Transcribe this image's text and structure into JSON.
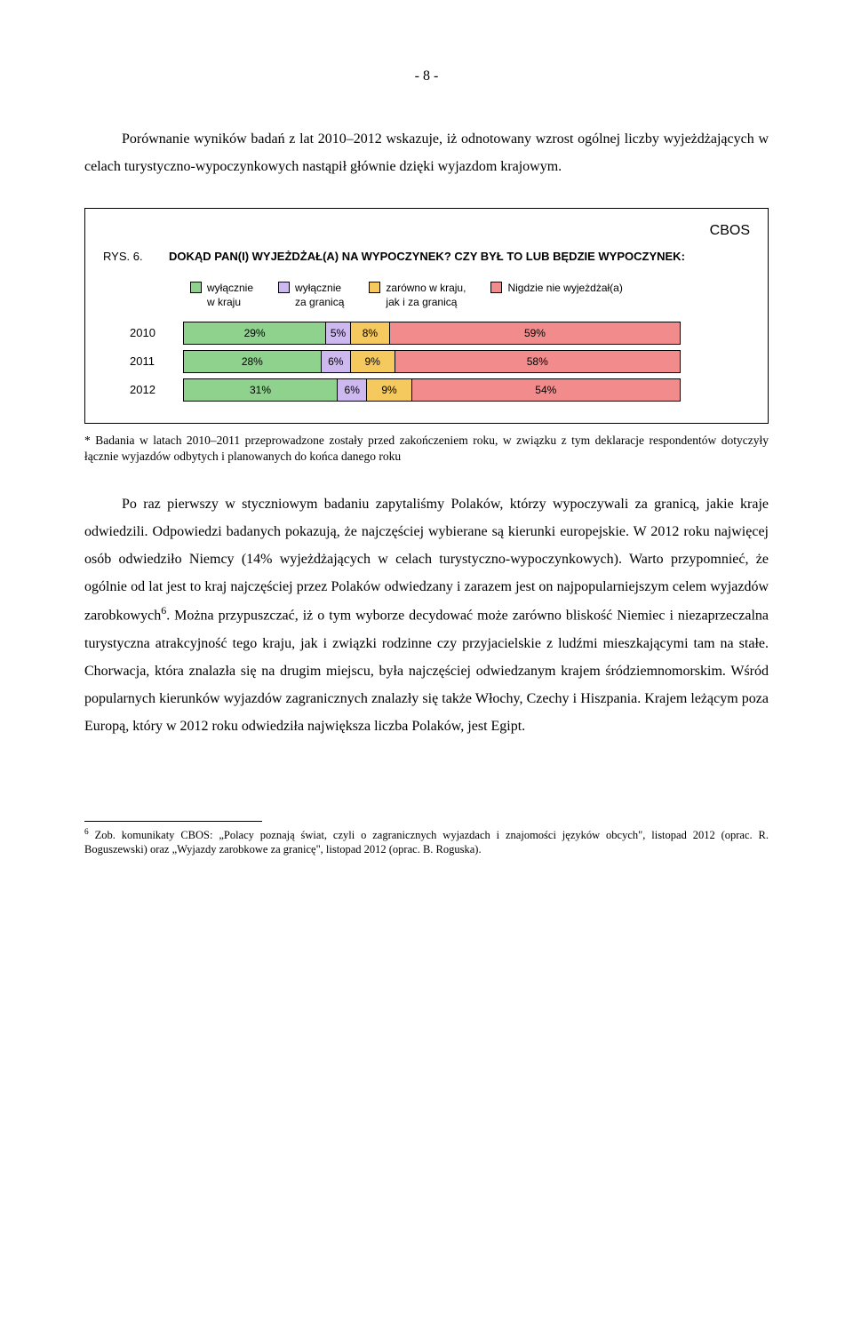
{
  "page_number": "- 8 -",
  "intro_para": "Porównanie wyników badań z lat 2010–2012 wskazuje, iż odnotowany wzrost ogólnej liczby wyjeżdżających w celach turystyczno-wypoczynkowych nastąpił głównie dzięki wyjazdom krajowym.",
  "chart": {
    "cbos": "CBOS",
    "rys_label": "RYS. 6.",
    "question": "DOKĄD PAN(I) WYJEŻDŻAŁ(A) NA WYPOCZYNEK? CZY BYŁ TO LUB BĘDZIE WYPOCZYNEK:",
    "legend": [
      {
        "label_lines": [
          "wyłącznie",
          "w kraju"
        ],
        "color": "#8ed28e"
      },
      {
        "label_lines": [
          "wyłącznie",
          "za granicą"
        ],
        "color": "#cdb9f0"
      },
      {
        "label_lines": [
          "zarówno w kraju,",
          "jak i za granicą"
        ],
        "color": "#f5c95d"
      },
      {
        "label_lines": [
          "Nigdzie nie wyjeżdżał(a)"
        ],
        "color": "#f28b8b"
      }
    ],
    "rows": [
      {
        "year": "2010",
        "segments": [
          {
            "label": "29%",
            "value": 29,
            "color": "#8ed28e"
          },
          {
            "label": "5%",
            "value": 5,
            "color": "#cdb9f0"
          },
          {
            "label": "8%",
            "value": 8,
            "color": "#f5c95d"
          },
          {
            "label": "59%",
            "value": 59,
            "color": "#f28b8b"
          }
        ]
      },
      {
        "year": "2011",
        "segments": [
          {
            "label": "28%",
            "value": 28,
            "color": "#8ed28e"
          },
          {
            "label": "6%",
            "value": 6,
            "color": "#cdb9f0"
          },
          {
            "label": "9%",
            "value": 9,
            "color": "#f5c95d"
          },
          {
            "label": "58%",
            "value": 58,
            "color": "#f28b8b"
          }
        ]
      },
      {
        "year": "2012",
        "segments": [
          {
            "label": "31%",
            "value": 31,
            "color": "#8ed28e"
          },
          {
            "label": "6%",
            "value": 6,
            "color": "#cdb9f0"
          },
          {
            "label": "9%",
            "value": 9,
            "color": "#f5c95d"
          },
          {
            "label": "54%",
            "value": 54,
            "color": "#f28b8b"
          }
        ]
      }
    ],
    "note": "* Badania w latach 2010–2011 przeprowadzone zostały przed zakończeniem roku, w związku z tym deklaracje respondentów dotyczyły łącznie wyjazdów odbytych i planowanych do końca danego roku"
  },
  "body_para_1": "Po raz pierwszy w styczniowym badaniu zapytaliśmy Polaków, którzy wypoczywali za granicą, jakie kraje odwiedzili. Odpowiedzi badanych pokazują, że najczęściej wybierane są kierunki europejskie. W 2012 roku najwięcej osób odwiedziło Niemcy (14% wyjeżdża­jących w celach turystyczno-wypoczynkowych). Warto przypomnieć, że ogólnie od lat jest to kraj najczęściej przez Polaków odwiedzany i zarazem jest on najpopularniejszym celem wyjazdów zarobkowych",
  "body_para_1_sup": "6",
  "body_para_1_cont": ". Można przypuszczać, iż o tym wyborze decydować może zarówno bliskość Niemiec i niezaprzeczalna turystyczna atrakcyjność tego kraju, jak i związki rodzinne czy przyjacielskie z ludźmi mieszkającymi tam na stałe. Chorwacja, która znalazła się na drugim miejscu, była najczęściej odwiedzanym krajem śródziemnomorskim. Wśród popularnych kierunków wyjazdów zagranicznych znalazły się także Włochy, Czechy i Hiszpania. Krajem leżącym poza Europą, który w 2012 roku odwiedziła największa liczba Polaków, jest Egipt.",
  "footnote_marker": "6",
  "footnote_text": " Zob. komunikaty CBOS: „Polacy poznają świat, czyli o zagranicznych wyjazdach i znajomości języków obcych\", listopad 2012 (oprac. R. Boguszewski) oraz „Wyjazdy zarobkowe za granicę\", listopad 2012 (oprac. B. Roguska)."
}
